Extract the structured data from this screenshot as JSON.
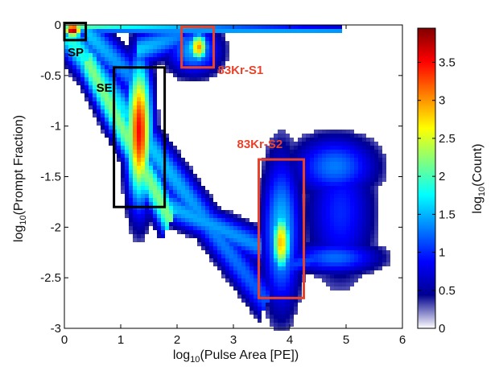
{
  "chart_data": {
    "type": "heatmap",
    "xlabel": {
      "main": "log",
      "sub": "10",
      "rest": "(Pulse Area [PE])"
    },
    "ylabel": {
      "main": "log",
      "sub": "10",
      "rest": "(Prompt Fraction)"
    },
    "colorbar_label": {
      "main": "log",
      "sub": "10",
      "rest": "(Count)"
    },
    "xlim": [
      0,
      6
    ],
    "ylim": [
      -3,
      0
    ],
    "x_ticks": [
      0,
      1,
      2,
      3,
      4,
      5,
      6
    ],
    "x_tick_labels": [
      "0",
      "1",
      "2",
      "3",
      "4",
      "5",
      "6"
    ],
    "y_ticks": [
      0,
      -0.5,
      -1,
      -1.5,
      -2,
      -2.5,
      -3
    ],
    "y_tick_labels": [
      "0",
      "-0.5",
      "-1",
      "-1.5",
      "-2",
      "-2.5",
      "-3"
    ],
    "colorbar_range": [
      0,
      3.95
    ],
    "colorbar_ticks": [
      0,
      0.5,
      1,
      1.5,
      2,
      2.5,
      3,
      3.5
    ],
    "colorbar_tick_labels": [
      "0",
      "0.5",
      "1",
      "1.5",
      "2",
      "2.5",
      "3",
      "3.5"
    ],
    "colormap": [
      "#ffffff",
      "#00008f",
      "#0000ff",
      "#0080ff",
      "#00ffff",
      "#80ff80",
      "#ffff00",
      "#ff8000",
      "#ff0000",
      "#800000"
    ],
    "populations": [
      {
        "x": 0.15,
        "y": -0.05,
        "peak": 3.9
      },
      {
        "x": 1.35,
        "y": -1.05,
        "peak": 3.5
      },
      {
        "x": 2.4,
        "y": -0.2,
        "peak": 3.0
      },
      {
        "x": 3.85,
        "y": -2.15,
        "peak": 2.9
      },
      {
        "x": 4.8,
        "y": -1.4,
        "peak": 1.3
      },
      {
        "x": 4.8,
        "y": -2.3,
        "peak": 1.3
      }
    ],
    "regions": [
      {
        "label": "SP",
        "color": "#000000",
        "x": [
          0.0,
          0.38
        ],
        "y": [
          -0.15,
          0.02
        ]
      },
      {
        "label": "SE",
        "color": "#000000",
        "x": [
          0.88,
          1.78
        ],
        "y": [
          -1.8,
          -0.42
        ]
      },
      {
        "label": "83Kr-S1",
        "color": "#e8432a",
        "x": [
          2.08,
          2.65
        ],
        "y": [
          -0.42,
          -0.02
        ]
      },
      {
        "label": "83Kr-S2",
        "color": "#e8432a",
        "x": [
          3.45,
          4.25
        ],
        "y": [
          -2.7,
          -1.33
        ]
      }
    ]
  }
}
